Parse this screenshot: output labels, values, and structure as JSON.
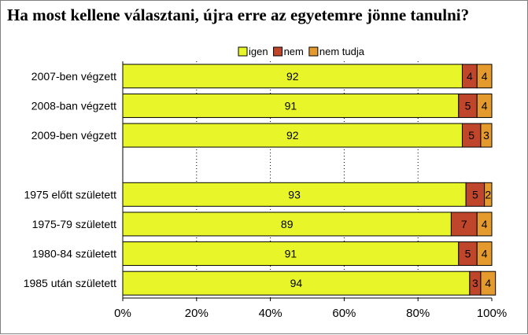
{
  "chart_data": {
    "type": "bar",
    "orientation": "horizontal",
    "stacked": true,
    "percent_stacked": true,
    "title": "Ha most kellene választani, újra erre az egyetemre jönne tanulni?",
    "xlim": [
      0,
      100
    ],
    "x_ticks": [
      "0%",
      "20%",
      "40%",
      "60%",
      "80%",
      "100%"
    ],
    "legend_position": "top",
    "grid": "vertical dotted",
    "groups": [
      {
        "categories": [
          "2007-ben végzett",
          "2008-ban végzett",
          "2009-ben végzett"
        ]
      },
      {
        "categories": [
          "1975 előtt született",
          "1975-79 született",
          "1980-84 született",
          "1985 után született"
        ]
      }
    ],
    "categories": [
      "2007-ben végzett",
      "2008-ban végzett",
      "2009-ben végzett",
      "1975 előtt született",
      "1975-79 született",
      "1980-84 született",
      "1985 után született"
    ],
    "series": [
      {
        "name": "igen",
        "color": "#e8f529",
        "values": [
          92,
          91,
          92,
          93,
          89,
          91,
          94
        ]
      },
      {
        "name": "nem",
        "color": "#c0462b",
        "values": [
          4,
          5,
          5,
          5,
          7,
          5,
          3
        ]
      },
      {
        "name": "nem tudja",
        "color": "#e59a2e",
        "values": [
          4,
          4,
          3,
          2,
          4,
          4,
          4
        ]
      }
    ]
  }
}
